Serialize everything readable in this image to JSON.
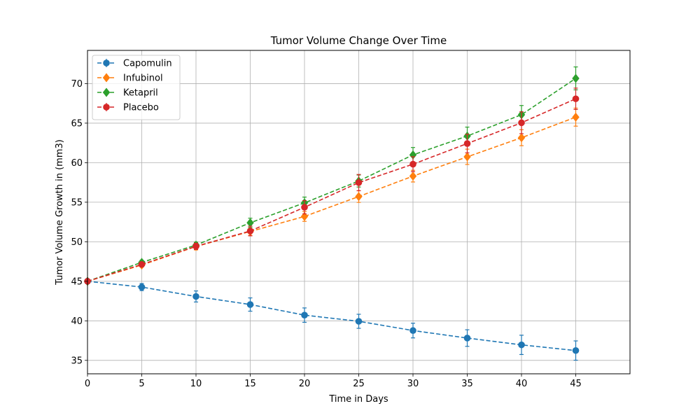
{
  "chart_data": {
    "type": "line",
    "title": "Tumor Volume Change Over Time",
    "xlabel": "Time in Days",
    "ylabel": "Tumor Volume Growth in (mm3)",
    "xlim": [
      0,
      50
    ],
    "ylim": [
      33.3,
      74.2
    ],
    "x_ticks": [
      0,
      5,
      10,
      15,
      20,
      25,
      30,
      35,
      40,
      45
    ],
    "y_ticks": [
      35,
      40,
      45,
      50,
      55,
      60,
      65,
      70
    ],
    "grid": true,
    "legend_position": "top-left",
    "x": [
      0,
      5,
      10,
      15,
      20,
      25,
      30,
      35,
      40,
      45
    ],
    "series": [
      {
        "name": "Capomulin",
        "color": "#1f77b4",
        "marker": "circle",
        "linestyle": "dashed",
        "values": [
          45.0,
          44.27,
          43.08,
          42.06,
          40.72,
          39.94,
          38.77,
          37.82,
          36.96,
          36.24
        ],
        "errors": [
          0.0,
          0.45,
          0.7,
          0.84,
          0.91,
          0.89,
          0.93,
          1.05,
          1.22,
          1.22
        ]
      },
      {
        "name": "Infubinol",
        "color": "#ff7f0e",
        "marker": "diamond",
        "linestyle": "dashed",
        "values": [
          45.0,
          47.06,
          49.4,
          51.3,
          53.2,
          55.72,
          58.3,
          60.74,
          63.16,
          65.76
        ],
        "errors": [
          0.0,
          0.24,
          0.43,
          0.49,
          0.62,
          0.74,
          0.74,
          0.97,
          1.01,
          1.14
        ]
      },
      {
        "name": "Ketapril",
        "color": "#2ca02c",
        "marker": "diamond",
        "linestyle": "dashed",
        "values": [
          45.0,
          47.39,
          49.58,
          52.4,
          54.92,
          57.68,
          60.99,
          63.37,
          66.07,
          70.66
        ],
        "errors": [
          0.0,
          0.26,
          0.36,
          0.58,
          0.73,
          0.76,
          0.93,
          1.13,
          1.16,
          1.45
        ]
      },
      {
        "name": "Placebo",
        "color": "#d62728",
        "marker": "circle",
        "linestyle": "dashed",
        "values": [
          45.0,
          47.13,
          49.42,
          51.36,
          54.36,
          57.48,
          59.81,
          62.42,
          65.05,
          68.08
        ],
        "errors": [
          0.0,
          0.22,
          0.4,
          0.61,
          0.84,
          1.03,
          0.95,
          1.18,
          1.38,
          1.35
        ]
      }
    ]
  }
}
